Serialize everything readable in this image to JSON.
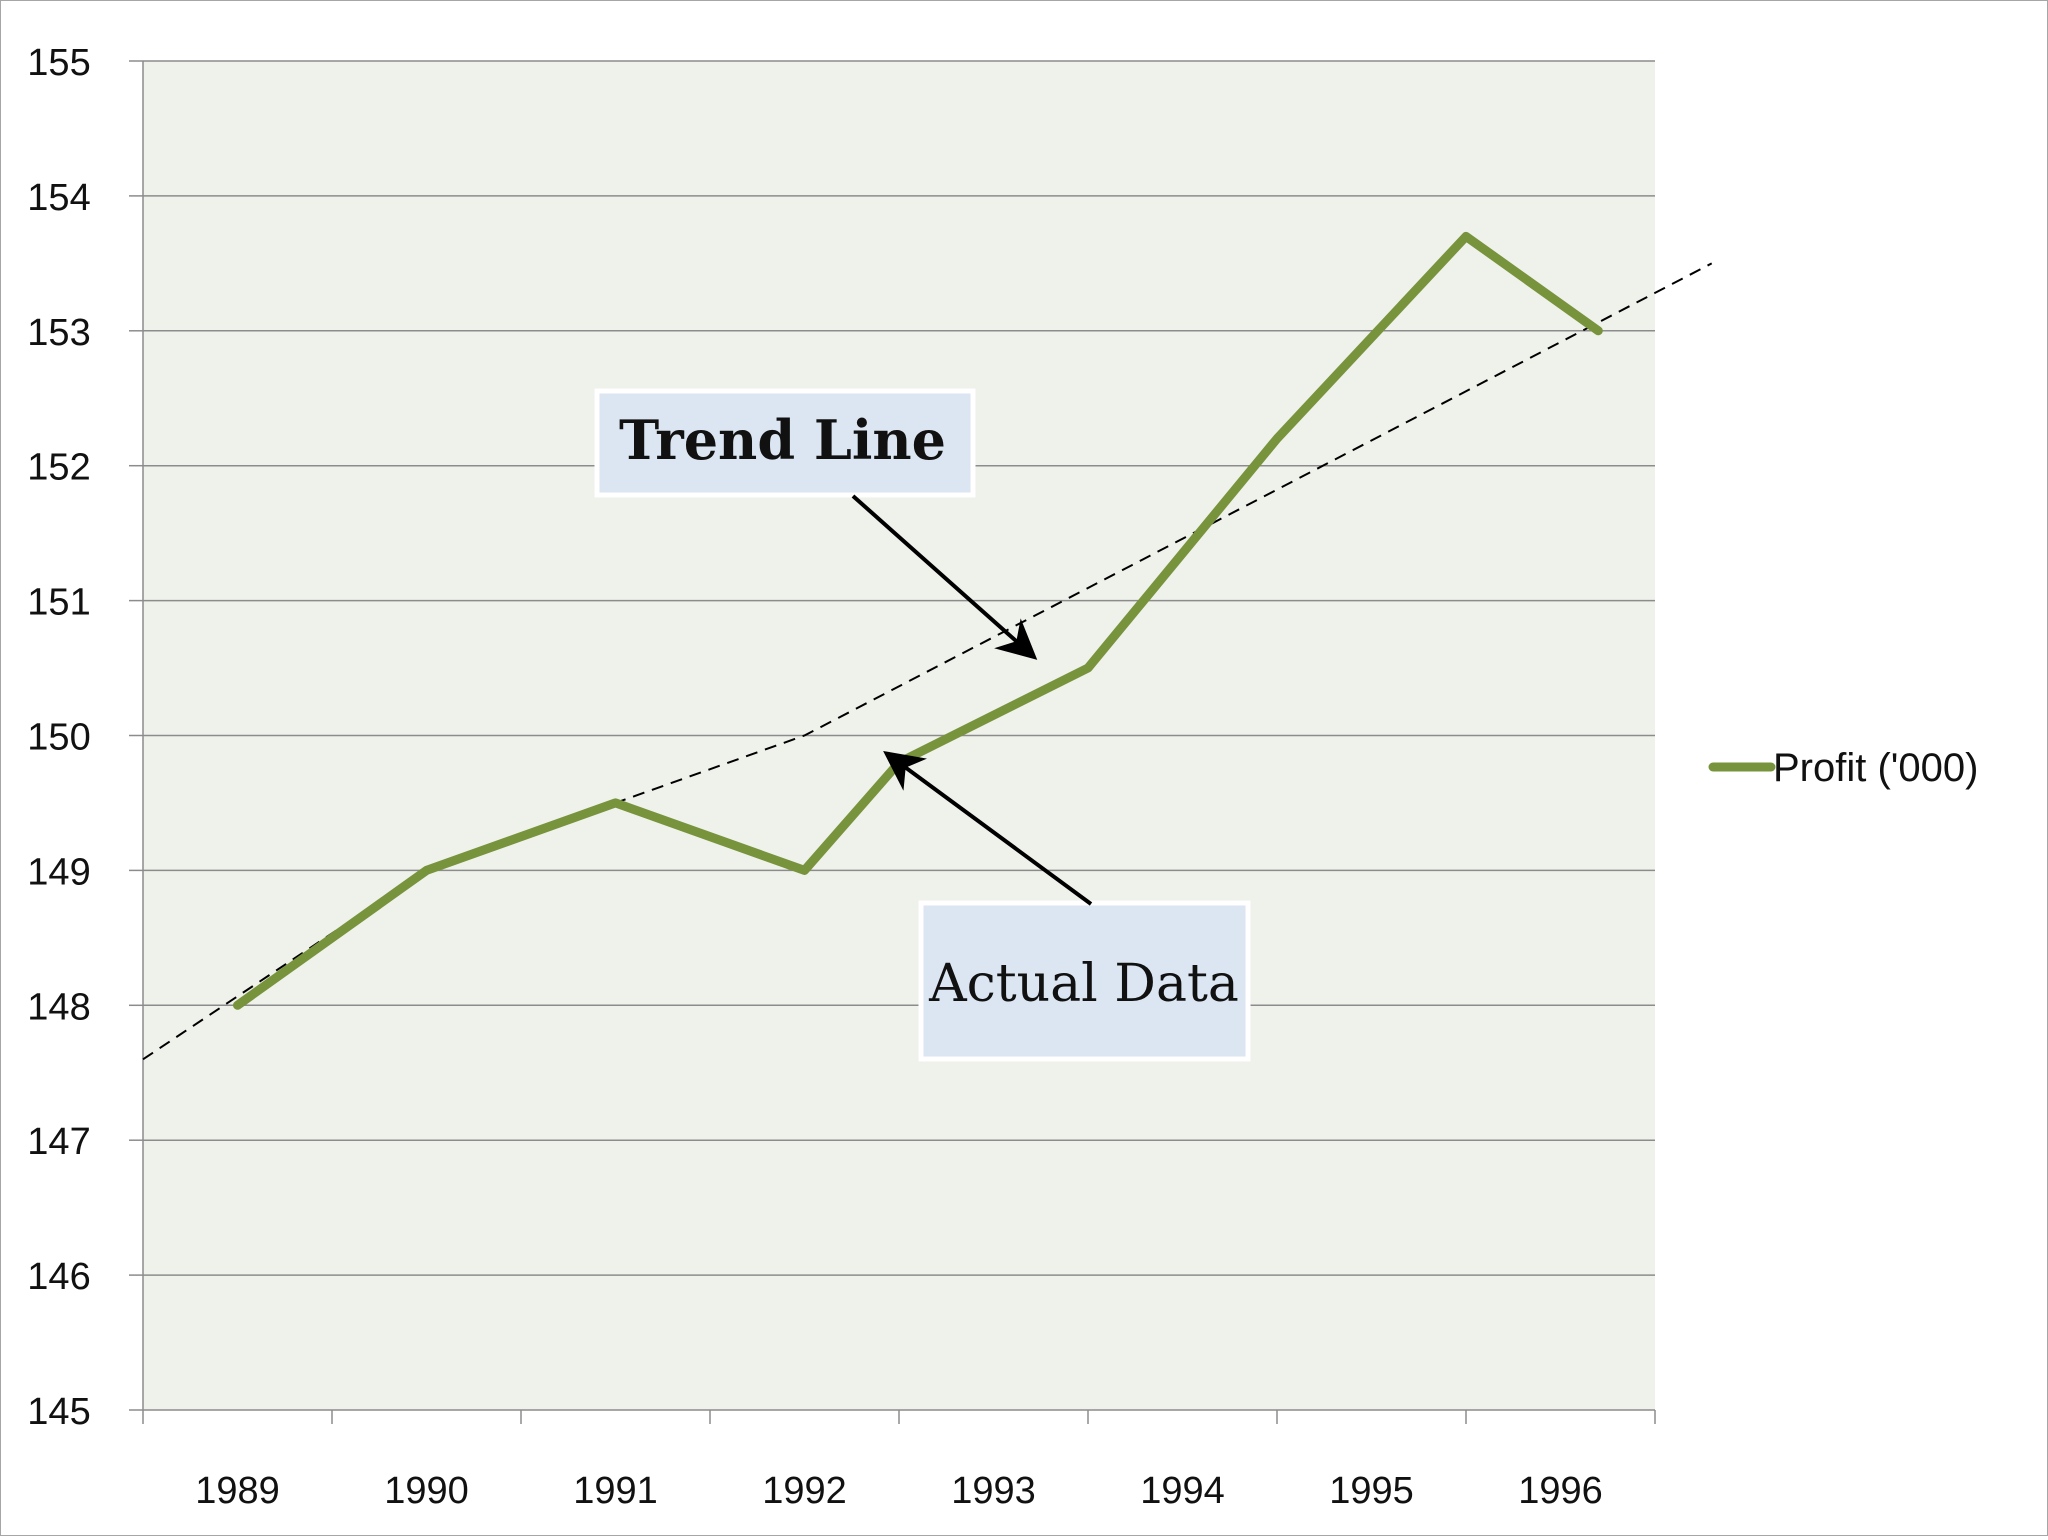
{
  "chart_data": {
    "type": "line",
    "categories": [
      "1989",
      "1990",
      "1991",
      "1992",
      "1993",
      "1994",
      "1995",
      "1996"
    ],
    "x": [
      1989,
      1990,
      1991,
      1992,
      1992.5,
      1993.5,
      1994.5,
      1995.5,
      1996.2
    ],
    "series": [
      {
        "name": "Profit ('000)",
        "values": [
          148,
          149,
          149.5,
          149,
          149.8,
          150.5,
          152.2,
          153.7,
          153.0
        ],
        "color": "#77933c"
      }
    ],
    "trend_line": {
      "style": "dashed",
      "color": "#000000",
      "x": [
        1988.5,
        1990,
        1991,
        1992,
        1996.8
      ],
      "values": [
        147.6,
        149.0,
        149.5,
        150.0,
        153.5
      ]
    },
    "ylim": [
      145,
      155
    ],
    "yticks": [
      145,
      146,
      147,
      148,
      149,
      150,
      151,
      152,
      153,
      154,
      155
    ],
    "grid": true,
    "legend_position": "right",
    "plot_background": "#eff1eb",
    "annotations": [
      {
        "text": "Trend Line",
        "bold": true,
        "points_to": {
          "x": 1993.2,
          "y": 150.6
        }
      },
      {
        "text": "Actual Data",
        "bold": false,
        "points_to": {
          "x": 1992.45,
          "y": 149.85
        }
      }
    ],
    "title": "",
    "xlabel": "",
    "ylabel": ""
  }
}
